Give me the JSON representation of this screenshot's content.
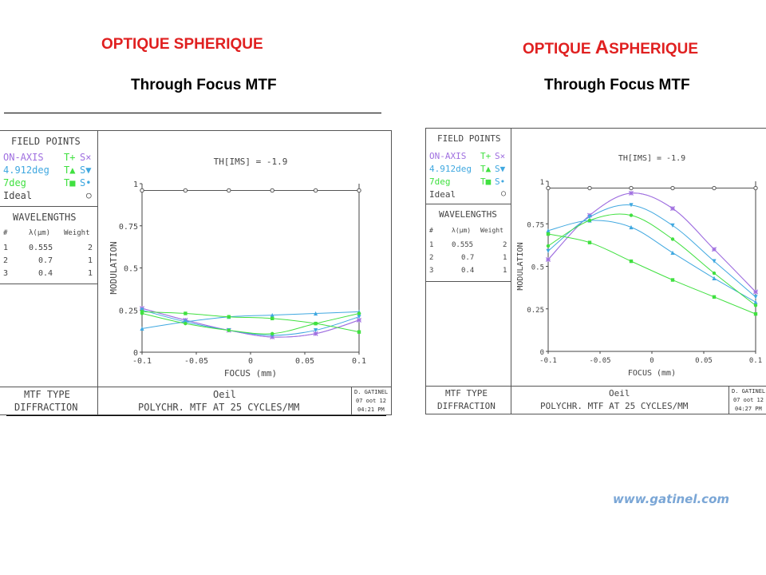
{
  "left": {
    "heading": "OPTIQUE SPHERIQUE",
    "subheading": "Through Focus MTF",
    "field_points": {
      "title": "FIELD POINTS",
      "rows": [
        {
          "name": "ON-AXIS",
          "t": "T+",
          "s": "S×",
          "color": "#a070e0"
        },
        {
          "name": "4.912deg",
          "t": "T▲",
          "s": "S▼",
          "color": "#40a8e0"
        },
        {
          "name": "7deg",
          "t": "T■",
          "s": "S•",
          "color": "#40e040"
        },
        {
          "name": "Ideal",
          "t": "",
          "s": "○",
          "color": "#444444"
        }
      ]
    },
    "wavelengths": {
      "title": "WAVELENGTHS",
      "headers": [
        "#",
        "λ(μm)",
        "Weight"
      ],
      "rows": [
        [
          "1",
          "0.555",
          "2"
        ],
        [
          "2",
          "0.7",
          "1"
        ],
        [
          "3",
          "0.4",
          "1"
        ]
      ]
    },
    "plot_title": "TH[IMS] = -1.9",
    "footer": {
      "mtf_type": "MTF TYPE",
      "diffraction": "DIFFRACTION",
      "eye": "Oeil",
      "desc": "POLYCHR. MTF AT 25 CYCLES/MM",
      "author": "D. GATINEL",
      "date": "07 oot 12",
      "time": "04:21 PM"
    }
  },
  "right": {
    "heading_pre": "OPTIQUE ",
    "heading_big": "A",
    "heading_post": "SPHERIQUE",
    "subheading": "Through Focus MTF",
    "field_points": {
      "title": "FIELD POINTS",
      "rows": [
        {
          "name": "ON-AXIS",
          "t": "T+",
          "s": "S×",
          "color": "#a070e0"
        },
        {
          "name": "4.912deg",
          "t": "T▲",
          "s": "S▼",
          "color": "#40a8e0"
        },
        {
          "name": "7deg",
          "t": "T■",
          "s": "S•",
          "color": "#40e040"
        },
        {
          "name": "Ideal",
          "t": "",
          "s": "○",
          "color": "#444444"
        }
      ]
    },
    "wavelengths": {
      "title": "WAVELENGTHS",
      "headers": [
        "#",
        "λ(μm)",
        "Weight"
      ],
      "rows": [
        [
          "1",
          "0.555",
          "2"
        ],
        [
          "2",
          "0.7",
          "1"
        ],
        [
          "3",
          "0.4",
          "1"
        ]
      ]
    },
    "plot_title": "TH[IMS] = -1.9",
    "footer": {
      "mtf_type": "MTF TYPE",
      "diffraction": "DIFFRACTION",
      "eye": "Oeil",
      "desc": "POLYCHR. MTF AT 25 CYCLES/MM",
      "author": "D. GATINEL",
      "date": "07 oot 12",
      "time": "04:27 PM"
    }
  },
  "watermark": "www.gatinel.com",
  "chart_data": [
    {
      "type": "line",
      "title": "TH[IMS] = -1.9",
      "xlabel": "FOCUS (mm)",
      "ylabel": "MODULATION",
      "xlim": [
        -0.1,
        0.1
      ],
      "ylim": [
        0,
        1
      ],
      "x_ticks": [
        "-0.1",
        "-0.05",
        "0",
        "0.05",
        "0.1"
      ],
      "y_ticks": [
        "0",
        "0.25",
        "0.5",
        "0.75",
        "1"
      ],
      "x": [
        -0.1,
        -0.06,
        -0.02,
        0.02,
        0.06,
        0.1
      ],
      "series": [
        {
          "name": "Ideal",
          "color": "#555555",
          "marker": "circle",
          "values": [
            0.96,
            0.96,
            0.96,
            0.96,
            0.96,
            0.96
          ]
        },
        {
          "name": "ON-AXIS T",
          "color": "#a070e0",
          "marker": "plus",
          "values": [
            0.26,
            0.19,
            0.13,
            0.09,
            0.11,
            0.19
          ]
        },
        {
          "name": "ON-AXIS S",
          "color": "#a070e0",
          "marker": "x",
          "values": [
            0.26,
            0.19,
            0.13,
            0.09,
            0.11,
            0.19
          ]
        },
        {
          "name": "4.912deg T",
          "color": "#40a8e0",
          "marker": "tri-up",
          "values": [
            0.14,
            0.18,
            0.21,
            0.22,
            0.23,
            0.24
          ]
        },
        {
          "name": "4.912deg S",
          "color": "#40a8e0",
          "marker": "tri-down",
          "values": [
            0.25,
            0.18,
            0.13,
            0.1,
            0.13,
            0.21
          ]
        },
        {
          "name": "7deg T",
          "color": "#40e040",
          "marker": "square",
          "values": [
            0.24,
            0.23,
            0.21,
            0.2,
            0.17,
            0.12
          ]
        },
        {
          "name": "7deg S",
          "color": "#40e040",
          "marker": "dot",
          "values": [
            0.23,
            0.17,
            0.13,
            0.11,
            0.17,
            0.23
          ]
        }
      ]
    },
    {
      "type": "line",
      "title": "TH[IMS] = -1.9",
      "xlabel": "FOCUS (mm)",
      "ylabel": "MODULATION",
      "xlim": [
        -0.1,
        0.1
      ],
      "ylim": [
        0,
        1
      ],
      "x_ticks": [
        "-0.1",
        "-0.05",
        "0",
        "0.05",
        "0.1"
      ],
      "y_ticks": [
        "0",
        "0.25",
        "0.5",
        "0.75",
        "1"
      ],
      "x": [
        -0.1,
        -0.06,
        -0.02,
        0.02,
        0.06,
        0.1
      ],
      "series": [
        {
          "name": "Ideal",
          "color": "#555555",
          "marker": "circle",
          "values": [
            0.96,
            0.96,
            0.96,
            0.96,
            0.96,
            0.96
          ]
        },
        {
          "name": "ON-AXIS T",
          "color": "#a070e0",
          "marker": "plus",
          "values": [
            0.54,
            0.8,
            0.93,
            0.84,
            0.6,
            0.35
          ]
        },
        {
          "name": "ON-AXIS S",
          "color": "#a070e0",
          "marker": "x",
          "values": [
            0.54,
            0.8,
            0.93,
            0.84,
            0.6,
            0.35
          ]
        },
        {
          "name": "4.912deg T",
          "color": "#40a8e0",
          "marker": "tri-up",
          "values": [
            0.71,
            0.77,
            0.73,
            0.58,
            0.43,
            0.29
          ]
        },
        {
          "name": "4.912deg S",
          "color": "#40a8e0",
          "marker": "tri-down",
          "values": [
            0.59,
            0.79,
            0.86,
            0.74,
            0.53,
            0.32
          ]
        },
        {
          "name": "7deg T",
          "color": "#40e040",
          "marker": "square",
          "values": [
            0.69,
            0.64,
            0.53,
            0.42,
            0.32,
            0.22
          ]
        },
        {
          "name": "7deg S",
          "color": "#40e040",
          "marker": "dot",
          "values": [
            0.62,
            0.77,
            0.8,
            0.66,
            0.46,
            0.27
          ]
        }
      ]
    }
  ]
}
